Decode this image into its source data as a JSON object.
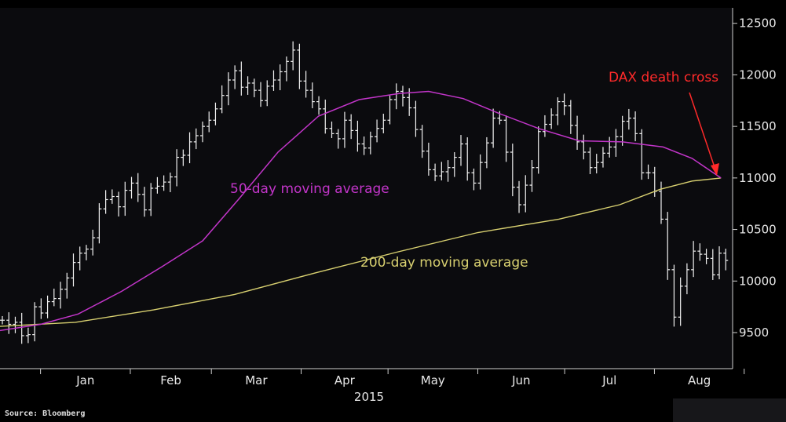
{
  "source": "Source: Bloomberg",
  "colors": {
    "background": "#0b0b0e",
    "price_bars": "#f2f2f2",
    "ma50": "#c235c9",
    "ma200": "#d8d070",
    "annotation": "#ff2a2a"
  },
  "chart_data": {
    "type": "line",
    "title": "",
    "xlabel": "2015",
    "ylabel": "",
    "x_tick_labels": [
      "Jan",
      "Feb",
      "Mar",
      "Apr",
      "May",
      "Jun",
      "Jul",
      "Aug"
    ],
    "y_ticks": [
      9500,
      10000,
      10500,
      11000,
      11500,
      12000,
      12500
    ],
    "ylim": [
      9150,
      12650
    ],
    "y_axis_position": "right",
    "grid": false,
    "annotations": [
      {
        "text": "DAX death cross",
        "x": "2015-08-24",
        "y": 11000
      },
      {
        "text": "50-day moving average",
        "x": "2015-04-01",
        "y": 10850
      },
      {
        "text": "200-day moving average",
        "x": "2015-05-25",
        "y": 10120
      }
    ],
    "series": [
      {
        "name": "50-day moving average",
        "points": [
          [
            "2014-12-18",
            9520
          ],
          [
            "2015-01-01",
            9580
          ],
          [
            "2015-01-14",
            9680
          ],
          [
            "2015-01-29",
            9900
          ],
          [
            "2015-02-12",
            10140
          ],
          [
            "2015-02-26",
            10390
          ],
          [
            "2015-03-10",
            10780
          ],
          [
            "2015-03-24",
            11250
          ],
          [
            "2015-04-07",
            11600
          ],
          [
            "2015-04-21",
            11760
          ],
          [
            "2015-05-05",
            11820
          ],
          [
            "2015-05-15",
            11840
          ],
          [
            "2015-05-27",
            11770
          ],
          [
            "2015-06-08",
            11630
          ],
          [
            "2015-06-22",
            11480
          ],
          [
            "2015-07-06",
            11360
          ],
          [
            "2015-07-21",
            11350
          ],
          [
            "2015-08-04",
            11300
          ],
          [
            "2015-08-14",
            11190
          ],
          [
            "2015-08-24",
            11000
          ]
        ]
      },
      {
        "name": "200-day moving average",
        "points": [
          [
            "2014-12-18",
            9560
          ],
          [
            "2015-01-13",
            9600
          ],
          [
            "2015-02-09",
            9720
          ],
          [
            "2015-03-09",
            9870
          ],
          [
            "2015-04-06",
            10080
          ],
          [
            "2015-05-04",
            10280
          ],
          [
            "2015-06-01",
            10470
          ],
          [
            "2015-06-29",
            10600
          ],
          [
            "2015-07-20",
            10740
          ],
          [
            "2015-08-03",
            10890
          ],
          [
            "2015-08-14",
            10970
          ],
          [
            "2015-08-24",
            11000
          ]
        ]
      },
      {
        "name": "DAX",
        "style": "bars",
        "values_close": [
          9620,
          9580,
          9600,
          9470,
          9480,
          9750,
          9690,
          9800,
          9830,
          9920,
          10030,
          10180,
          10270,
          10310,
          10420,
          10700,
          10790,
          10820,
          10720,
          10880,
          10950,
          10840,
          10690,
          10900,
          10920,
          10960,
          11010,
          11200,
          11220,
          11350,
          11410,
          11500,
          11560,
          11670,
          11800,
          11950,
          12040,
          11880,
          11920,
          11850,
          11750,
          11890,
          11950,
          12030,
          12130,
          12240,
          11940,
          11850,
          11740,
          11670,
          11480,
          11430,
          11380,
          11560,
          11460,
          11330,
          11290,
          11400,
          11480,
          11560,
          11760,
          11840,
          11780,
          11680,
          11470,
          11260,
          11080,
          11020,
          11060,
          11100,
          11200,
          11330,
          11050,
          10950,
          11150,
          11340,
          11580,
          11560,
          11250,
          10910,
          10740,
          10930,
          11100,
          11450,
          11520,
          11610,
          11740,
          11700,
          11510,
          11350,
          11250,
          11100,
          11150,
          11240,
          11300,
          11400,
          11550,
          11580,
          11430,
          11050,
          11050,
          10870,
          10600,
          10110,
          9650,
          9950,
          10110,
          10290,
          10260,
          10220,
          10060,
          10270,
          10200
        ]
      }
    ]
  }
}
